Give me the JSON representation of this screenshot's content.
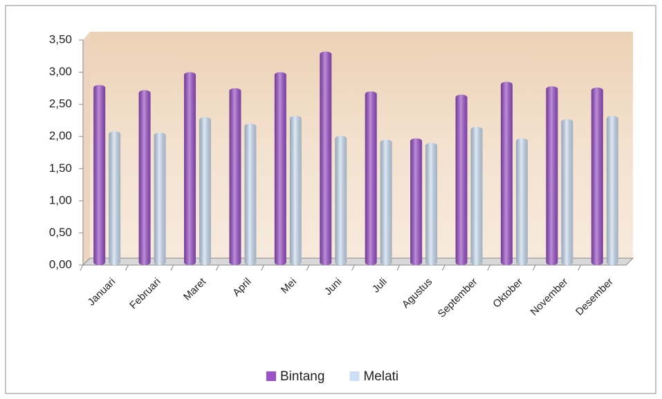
{
  "chart_data": {
    "type": "bar",
    "categories": [
      "Januari",
      "Februari",
      "Maret",
      "April",
      "Mei",
      "Juni",
      "Juli",
      "Agustus",
      "September",
      "Oktober",
      "November",
      "Desember"
    ],
    "series": [
      {
        "name": "Bintang",
        "color": "#9b52c9",
        "values": [
          2.8,
          2.72,
          3.0,
          2.75,
          3.0,
          3.32,
          2.7,
          1.97,
          2.65,
          2.85,
          2.78,
          2.76
        ]
      },
      {
        "name": "Melati",
        "color": "#cddff4",
        "values": [
          2.08,
          2.06,
          2.3,
          2.2,
          2.32,
          2.01,
          1.95,
          1.9,
          2.15,
          1.97,
          2.27,
          2.32
        ]
      }
    ],
    "ylim": [
      0,
      3.5
    ],
    "yticks": [
      {
        "value": 0,
        "label": "0,00"
      },
      {
        "value": 0.5,
        "label": "0,50"
      },
      {
        "value": 1,
        "label": "1,00"
      },
      {
        "value": 1.5,
        "label": "1,50"
      },
      {
        "value": 2,
        "label": "2,00"
      },
      {
        "value": 2.5,
        "label": "2,50"
      },
      {
        "value": 3,
        "label": "3,00"
      },
      {
        "value": 3.5,
        "label": "3,50"
      }
    ],
    "legend": "bottom"
  }
}
